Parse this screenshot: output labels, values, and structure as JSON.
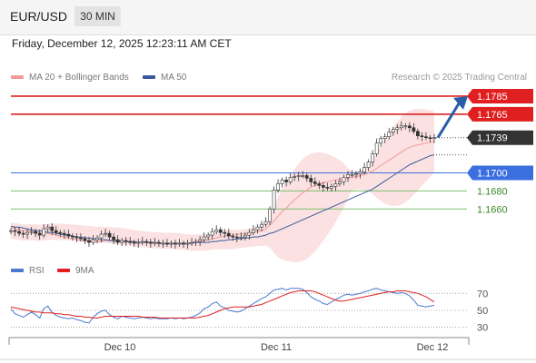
{
  "header": {
    "pair": "EUR/USD",
    "timeframe": "30 MIN"
  },
  "datetime": "Friday, December 12, 2025 12:23:11 AM CET",
  "legend": [
    {
      "name": "MA 20 + Bollinger Bands",
      "color": "#f29a9a"
    },
    {
      "name": "MA 50",
      "color": "#3a5a9e"
    }
  ],
  "credit": "Research © 2025 Trading Central",
  "rsi_legend": [
    {
      "name": "RSI",
      "color": "#4a7ad0"
    },
    {
      "name": "9MA",
      "color": "#e02020"
    }
  ],
  "colors": {
    "resistance": "#e02020",
    "support": "#3b6fe0",
    "target": "#7cbf6c",
    "last": "#333333",
    "arrow": "#2a5fa8"
  },
  "chart_data": [
    {
      "type": "line",
      "title": "EUR/USD 30 MIN",
      "x_ticks": [
        "Dec 10",
        "Dec 11",
        "Dec 12"
      ],
      "ylim": [
        1.161,
        1.1795
      ],
      "series": [
        {
          "name": "EUR/USD",
          "values": [
            1.1636,
            1.1635,
            1.1633,
            1.1632,
            1.1634,
            1.1635,
            1.1633,
            1.1631,
            1.1638,
            1.164,
            1.1636,
            1.1634,
            1.1633,
            1.1632,
            1.163,
            1.1629,
            1.1628,
            1.1627,
            1.1625,
            1.1623,
            1.1626,
            1.1628,
            1.1632,
            1.1633,
            1.1629,
            1.1626,
            1.1623,
            1.1625,
            1.1624,
            1.1623,
            1.1622,
            1.1623,
            1.1624,
            1.1623,
            1.1622,
            1.1623,
            1.1622,
            1.1622,
            1.1621,
            1.1622,
            1.1621,
            1.1622,
            1.1621,
            1.1622,
            1.1623,
            1.1624,
            1.1626,
            1.1629,
            1.1631,
            1.1635,
            1.1637,
            1.1634,
            1.1633,
            1.163,
            1.1629,
            1.1628,
            1.1629,
            1.1631,
            1.1634,
            1.1637,
            1.164,
            1.1643,
            1.1646,
            1.166,
            1.1681,
            1.1688,
            1.1692,
            1.169,
            1.1695,
            1.1696,
            1.1697,
            1.1697,
            1.1694,
            1.169,
            1.1688,
            1.1686,
            1.1684,
            1.1683,
            1.1685,
            1.1688,
            1.169,
            1.1695,
            1.1698,
            1.1698,
            1.1699,
            1.1701,
            1.1706,
            1.1712,
            1.1721,
            1.1733,
            1.1738,
            1.174,
            1.1745,
            1.1748,
            1.175,
            1.1752,
            1.1752,
            1.175,
            1.1746,
            1.1741,
            1.174,
            1.1739,
            1.1738,
            1.1739
          ]
        },
        {
          "name": "MA 20",
          "values": [
            1.164,
            1.1638,
            1.1637,
            1.1636,
            1.1636,
            1.1635,
            1.1634,
            1.1634,
            1.1633,
            1.1633,
            1.1632,
            1.1631,
            1.163,
            1.1629,
            1.1628,
            1.1627,
            1.1626,
            1.1625,
            1.1625,
            1.1624,
            1.1624,
            1.1624,
            1.1624,
            1.1625,
            1.1625,
            1.1624,
            1.1624,
            1.1624,
            1.1623,
            1.1623,
            1.1623,
            1.1623,
            1.1623,
            1.1623,
            1.1622,
            1.1622,
            1.1622,
            1.1622,
            1.1622,
            1.1622,
            1.1622,
            1.1622,
            1.1622,
            1.1622,
            1.1623,
            1.1623,
            1.1624,
            1.1625,
            1.1626,
            1.1627,
            1.1628,
            1.1629,
            1.163,
            1.1631,
            1.1631,
            1.1632,
            1.1632,
            1.1633,
            1.1633,
            1.1634,
            1.1635,
            1.1636,
            1.1638,
            1.1642,
            1.1647,
            1.1652,
            1.1657,
            1.1661,
            1.1666,
            1.167,
            1.1674,
            1.1678,
            1.1681,
            1.1684,
            1.1686,
            1.1688,
            1.1689,
            1.169,
            1.1691,
            1.1692,
            1.1692,
            1.1693,
            1.1694,
            1.1695,
            1.1696,
            1.1697,
            1.1698,
            1.17,
            1.1702,
            1.1705,
            1.1708,
            1.1711,
            1.1714,
            1.1717,
            1.172,
            1.1723,
            1.1726,
            1.1728,
            1.173,
            1.1731,
            1.1732,
            1.1733,
            1.1734,
            1.1735
          ]
        },
        {
          "name": "MA 50",
          "values": [
            1.1641,
            1.164,
            1.164,
            1.1639,
            1.1638,
            1.1637,
            1.1636,
            1.1636,
            1.1635,
            1.1634,
            1.1634,
            1.1633,
            1.1632,
            1.1631,
            1.1631,
            1.163,
            1.1629,
            1.1629,
            1.1628,
            1.1628,
            1.1627,
            1.1627,
            1.1626,
            1.1626,
            1.1625,
            1.1625,
            1.1625,
            1.1624,
            1.1624,
            1.1624,
            1.1624,
            1.1623,
            1.1623,
            1.1623,
            1.1623,
            1.1623,
            1.1622,
            1.1622,
            1.1622,
            1.1622,
            1.1622,
            1.1622,
            1.1622,
            1.1622,
            1.1622,
            1.1623,
            1.1623,
            1.1623,
            1.1623,
            1.1624,
            1.1624,
            1.1625,
            1.1625,
            1.1626,
            1.1626,
            1.1627,
            1.1627,
            1.1628,
            1.1628,
            1.1629,
            1.1629,
            1.163,
            1.1631,
            1.1633,
            1.1634,
            1.1636,
            1.1638,
            1.164,
            1.1642,
            1.1644,
            1.1646,
            1.1648,
            1.165,
            1.1652,
            1.1654,
            1.1656,
            1.1658,
            1.166,
            1.1662,
            1.1664,
            1.1666,
            1.1668,
            1.167,
            1.1672,
            1.1674,
            1.1676,
            1.1678,
            1.168,
            1.1682,
            1.1685,
            1.1688,
            1.1691,
            1.1694,
            1.1697,
            1.17,
            1.1703,
            1.1706,
            1.1709,
            1.1711,
            1.1713,
            1.1715,
            1.1717,
            1.1719,
            1.172
          ]
        }
      ],
      "levels": [
        {
          "label": "1.1785",
          "value": 1.1785,
          "kind": "resistance"
        },
        {
          "label": "1.1765",
          "value": 1.1765,
          "kind": "resistance"
        },
        {
          "label": "1.1739",
          "value": 1.1739,
          "kind": "last"
        },
        {
          "label": "1.1700",
          "value": 1.17,
          "kind": "pivot"
        },
        {
          "label": "1.1680",
          "value": 1.168,
          "kind": "support"
        },
        {
          "label": "1.1660",
          "value": 1.166,
          "kind": "support"
        }
      ]
    },
    {
      "type": "line",
      "title": "RSI",
      "ylim": [
        20,
        80
      ],
      "y_ticks": [
        "70",
        "50",
        "30"
      ],
      "series": [
        {
          "name": "RSI",
          "values": [
            52,
            46,
            44,
            42,
            45,
            48,
            45,
            41,
            52,
            55,
            48,
            44,
            42,
            41,
            40,
            41,
            39,
            38,
            36,
            35,
            42,
            46,
            49,
            50,
            45,
            42,
            40,
            43,
            42,
            41,
            40,
            41,
            42,
            41,
            40,
            41,
            40,
            40,
            40,
            41,
            40,
            41,
            40,
            41,
            42,
            44,
            47,
            52,
            54,
            58,
            60,
            55,
            53,
            50,
            49,
            48,
            49,
            52,
            55,
            58,
            61,
            64,
            66,
            70,
            74,
            75,
            76,
            74,
            76,
            76,
            76,
            75,
            71,
            66,
            63,
            61,
            58,
            57,
            60,
            63,
            65,
            68,
            69,
            68,
            69,
            70,
            72,
            73,
            75,
            76,
            74,
            73,
            72,
            71,
            70,
            71,
            70,
            67,
            62,
            56,
            55,
            54,
            55,
            56
          ]
        },
        {
          "name": "9MA",
          "values": [
            54,
            53,
            52,
            51,
            50,
            49,
            48,
            48,
            47,
            47,
            47,
            46,
            46,
            45,
            45,
            44,
            43,
            43,
            42,
            42,
            41,
            41,
            42,
            43,
            43,
            43,
            43,
            43,
            43,
            43,
            43,
            43,
            42,
            42,
            42,
            42,
            41,
            41,
            41,
            41,
            41,
            41,
            41,
            41,
            41,
            41,
            42,
            43,
            44,
            46,
            48,
            50,
            52,
            53,
            54,
            54,
            54,
            54,
            54,
            55,
            56,
            57,
            59,
            61,
            63,
            65,
            67,
            69,
            71,
            72,
            73,
            73,
            73,
            73,
            72,
            70,
            68,
            66,
            64,
            62,
            61,
            61,
            62,
            63,
            64,
            65,
            66,
            67,
            68,
            69,
            70,
            71,
            72,
            72,
            73,
            73,
            73,
            72,
            71,
            70,
            68,
            66,
            63,
            60
          ]
        }
      ]
    }
  ]
}
